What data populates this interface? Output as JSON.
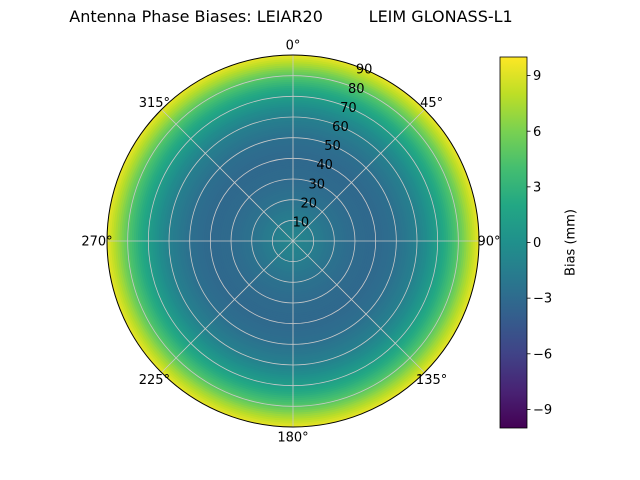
{
  "chart_data": {
    "type": "heatmap",
    "projection": "polar",
    "title": "Antenna Phase Biases: LEIAR20         LEIM GLONASS-L1",
    "angular_labels": [
      {
        "angle": 0,
        "label": "0°"
      },
      {
        "angle": 45,
        "label": "45°"
      },
      {
        "angle": 90,
        "label": "90°"
      },
      {
        "angle": 135,
        "label": "135°"
      },
      {
        "angle": 180,
        "label": "180°"
      },
      {
        "angle": 225,
        "label": "225°"
      },
      {
        "angle": 270,
        "label": "270°"
      },
      {
        "angle": 315,
        "label": "315°"
      }
    ],
    "radial_ticks": [
      10,
      20,
      30,
      40,
      50,
      60,
      70,
      80,
      90
    ],
    "radial_max": 90,
    "grid": true,
    "colorbar": {
      "label": "Bias (mm)",
      "ticks": [
        9,
        6,
        3,
        0,
        -3,
        -6,
        -9
      ],
      "tick_labels": [
        "9",
        "6",
        "3",
        "0",
        "−3",
        "−6",
        "−9"
      ],
      "vmin": -10,
      "vmax": 10,
      "colormap": "viridis",
      "position": "right"
    },
    "profile": {
      "comment_axis": "bias (mm) versus zenith angle (deg), approximately azimuth-symmetric",
      "zenith": [
        0,
        10,
        20,
        30,
        40,
        50,
        60,
        65,
        70,
        75,
        80,
        85,
        90
      ],
      "bias_mm": [
        -0.8,
        -1.5,
        -2.4,
        -3.0,
        -3.2,
        -2.7,
        -1.4,
        -0.3,
        1.0,
        2.6,
        4.6,
        7.0,
        9.2
      ]
    }
  }
}
